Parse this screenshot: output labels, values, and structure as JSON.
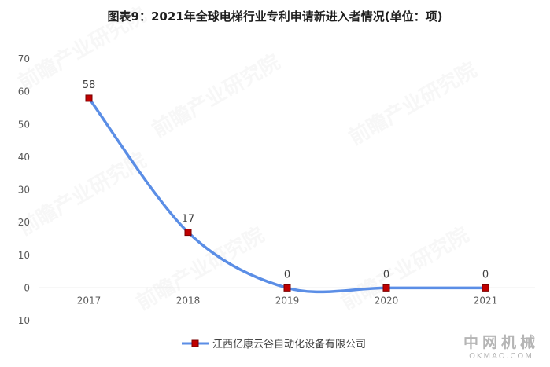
{
  "title": "图表9：2021年全球电梯行业专利申请新进入者情况(单位：项)",
  "brand": {
    "cn": "中网机械",
    "en": "OKMAO.COM"
  },
  "colors": {
    "line": "#5B8EE6",
    "marker_fill": "#C00000",
    "marker_border": "#7A0000",
    "grid": "#e6e6e6",
    "axis": "#bfbfbf"
  },
  "chart_data": {
    "type": "line",
    "title": "图表9：2021年全球电梯行业专利申请新进入者情况(单位：项)",
    "categories": [
      "2017",
      "2018",
      "2019",
      "2020",
      "2021"
    ],
    "series": [
      {
        "name": "江西亿康云谷自动化设备有限公司",
        "values": [
          58,
          17,
          0,
          0,
          0
        ]
      }
    ],
    "data_labels": [
      "58",
      "17",
      "0",
      "0",
      "0"
    ],
    "ylim": [
      -10,
      70
    ],
    "yticks": [
      70,
      60,
      50,
      40,
      30,
      20,
      10,
      0,
      -10
    ],
    "smooth": true,
    "grid": false,
    "legend_position": "bottom-center"
  }
}
